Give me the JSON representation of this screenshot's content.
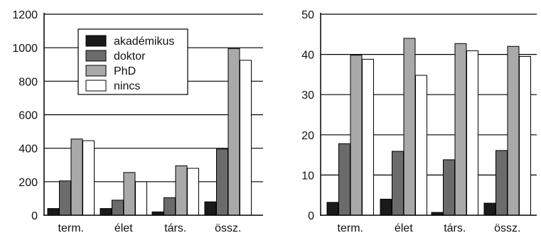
{
  "colors": {
    "akademikus": "#1a1a1a",
    "doktor": "#6b6b6b",
    "phd": "#a9a9a9",
    "nincs": "#ffffff",
    "axis": "#000000",
    "grid": "#000000"
  },
  "chart_data": [
    {
      "type": "bar",
      "categories": [
        "term.",
        "élet",
        "társ.",
        "össz."
      ],
      "series": [
        {
          "name": "akadémikus",
          "values": [
            40,
            40,
            20,
            80
          ]
        },
        {
          "name": "doktor",
          "values": [
            205,
            90,
            105,
            395
          ]
        },
        {
          "name": "PhD",
          "values": [
            455,
            255,
            295,
            995
          ]
        },
        {
          "name": "nincs",
          "values": [
            445,
            200,
            280,
            925
          ]
        }
      ],
      "ylim": [
        0,
        1200
      ],
      "yticks": [
        0,
        200,
        400,
        600,
        800,
        1000,
        1200
      ],
      "grid": true,
      "legend": "upper-left inside plot",
      "title": "",
      "xlabel": "",
      "ylabel": ""
    },
    {
      "type": "bar",
      "categories": [
        "term.",
        "élet",
        "társ.",
        "össz."
      ],
      "series": [
        {
          "name": "akadémikus",
          "values": [
            3.2,
            4.0,
            0.7,
            3.0
          ]
        },
        {
          "name": "doktor",
          "values": [
            17.8,
            15.9,
            13.8,
            16.1
          ]
        },
        {
          "name": "PhD",
          "values": [
            39.8,
            44.0,
            42.7,
            42.0
          ]
        },
        {
          "name": "nincs",
          "values": [
            38.8,
            34.8,
            40.9,
            39.5
          ]
        }
      ],
      "ylim": [
        0,
        50
      ],
      "yticks": [
        0,
        10,
        20,
        30,
        40,
        50
      ],
      "grid": true,
      "legend": "none",
      "title": "",
      "xlabel": "",
      "ylabel": ""
    }
  ]
}
